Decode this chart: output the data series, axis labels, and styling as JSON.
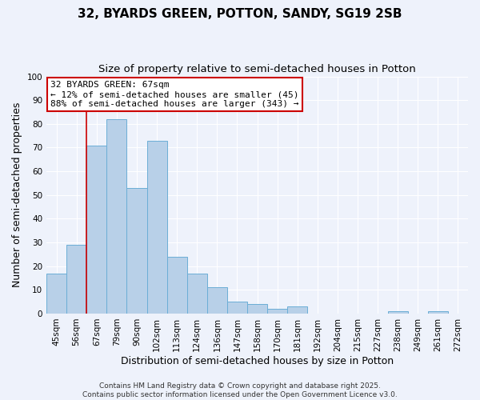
{
  "title": "32, BYARDS GREEN, POTTON, SANDY, SG19 2SB",
  "subtitle": "Size of property relative to semi-detached houses in Potton",
  "xlabel": "Distribution of semi-detached houses by size in Potton",
  "ylabel": "Number of semi-detached properties",
  "categories": [
    "45sqm",
    "56sqm",
    "67sqm",
    "79sqm",
    "90sqm",
    "102sqm",
    "113sqm",
    "124sqm",
    "136sqm",
    "147sqm",
    "158sqm",
    "170sqm",
    "181sqm",
    "192sqm",
    "204sqm",
    "215sqm",
    "227sqm",
    "238sqm",
    "249sqm",
    "261sqm",
    "272sqm"
  ],
  "values": [
    17,
    29,
    71,
    82,
    53,
    73,
    24,
    17,
    11,
    5,
    4,
    2,
    3,
    0,
    0,
    0,
    0,
    1,
    0,
    1,
    0
  ],
  "bar_color": "#b8d0e8",
  "bar_edge_color": "#6baed6",
  "highlight_bar_index": 2,
  "highlight_color": "#cc0000",
  "subject_size": "67sqm",
  "pct_smaller": 12,
  "count_smaller": 45,
  "pct_larger": 88,
  "count_larger": 343,
  "ylim": [
    0,
    100
  ],
  "yticks": [
    0,
    10,
    20,
    30,
    40,
    50,
    60,
    70,
    80,
    90,
    100
  ],
  "bg_color": "#eef2fb",
  "grid_color": "#ffffff",
  "footer_line1": "Contains HM Land Registry data © Crown copyright and database right 2025.",
  "footer_line2": "Contains public sector information licensed under the Open Government Licence v3.0.",
  "title_fontsize": 11,
  "subtitle_fontsize": 9.5,
  "axis_label_fontsize": 9,
  "tick_fontsize": 7.5,
  "annotation_fontsize": 8,
  "footer_fontsize": 6.5
}
